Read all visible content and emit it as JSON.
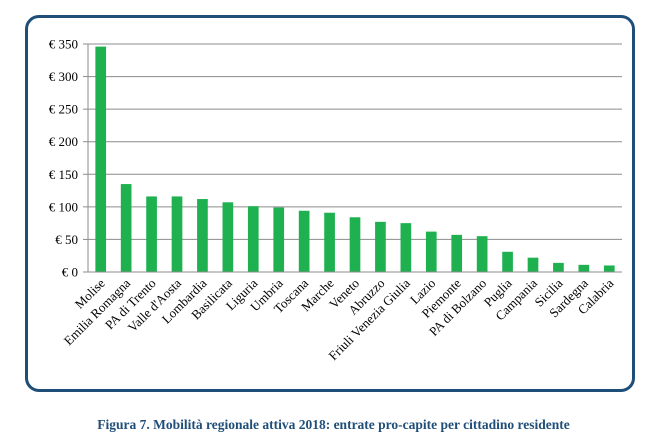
{
  "caption": "Figura 7. Mobilità regionale attiva 2018: entrate pro-capite per cittadino residente",
  "chart_data": {
    "type": "bar",
    "title": "",
    "xlabel": "",
    "ylabel": "",
    "ylim": [
      0,
      350
    ],
    "yticks": [
      0,
      50,
      100,
      150,
      200,
      250,
      300,
      350
    ],
    "ytick_labels": [
      "€ 0",
      "€ 50",
      "€ 100",
      "€ 150",
      "€ 200",
      "€ 250",
      "€ 300",
      "€ 350"
    ],
    "grid": true,
    "legend": "none",
    "bar_color": "#1fb050",
    "categories": [
      "Molise",
      "Emilia Romagna",
      "PA di Trento",
      "Valle d'Aosta",
      "Lombardia",
      "Basilicata",
      "Liguria",
      "Umbria",
      "Toscana",
      "Marche",
      "Veneto",
      "Abruzzo",
      "Friuli Venezia Giulia",
      "Lazio",
      "Piemonte",
      "PA di Bolzano",
      "Puglia",
      "Campania",
      "Sicilia",
      "Sardegna",
      "Calabria"
    ],
    "values": [
      346,
      135,
      116,
      116,
      112,
      107,
      101,
      99,
      94,
      91,
      84,
      77,
      75,
      62,
      57,
      55,
      31,
      22,
      14,
      11,
      10
    ]
  }
}
